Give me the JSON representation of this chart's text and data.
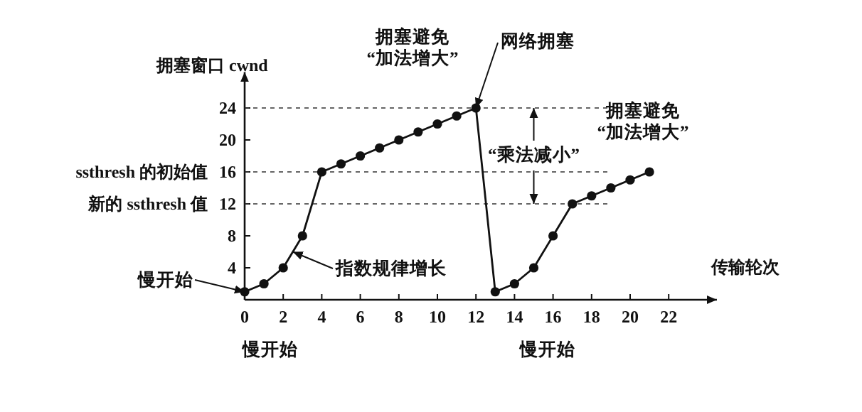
{
  "chart_data": {
    "type": "line",
    "ylabel": "拥塞窗口 cwnd",
    "xlabel": "传输轮次",
    "x": [
      0,
      1,
      2,
      3,
      4,
      5,
      6,
      7,
      8,
      9,
      10,
      11,
      12,
      13,
      14,
      15,
      16,
      17,
      18,
      19,
      20,
      21
    ],
    "values": [
      1,
      2,
      4,
      8,
      16,
      17,
      18,
      19,
      20,
      21,
      22,
      23,
      24,
      1,
      2,
      4,
      8,
      12,
      13,
      14,
      15,
      16
    ],
    "color": "#111111",
    "marker": "circle",
    "line_style": "solid",
    "grid": false,
    "xlim": [
      0,
      24.5
    ],
    "ylim": [
      0,
      28.5
    ],
    "xticks": [
      0,
      2,
      4,
      6,
      8,
      10,
      12,
      14,
      16,
      18,
      20,
      22
    ],
    "yticks": [
      4,
      8,
      12,
      16,
      20,
      24
    ],
    "ref_lines": [
      {
        "axis": "y",
        "value": 24,
        "line_style": "dashed"
      },
      {
        "axis": "y",
        "value": 16,
        "label": "ssthresh 的初始值",
        "line_style": "dashed"
      },
      {
        "axis": "y",
        "value": 12,
        "label": "新的 ssthresh 值",
        "line_style": "dashed"
      }
    ],
    "annotations": [
      "拥塞避免\n“加法增大”",
      {
        "text": "网络拥塞",
        "x": 12,
        "y": 24
      },
      {
        "text": "“乘法减小”",
        "x": 15,
        "y": 24
      },
      "拥塞避免\n“加法增大”",
      {
        "text": "慢开始",
        "x": 0,
        "y": 1
      },
      {
        "text": "指数规律增长",
        "x": 2.5,
        "y": 6
      },
      "慢开始",
      "慢开始"
    ]
  }
}
